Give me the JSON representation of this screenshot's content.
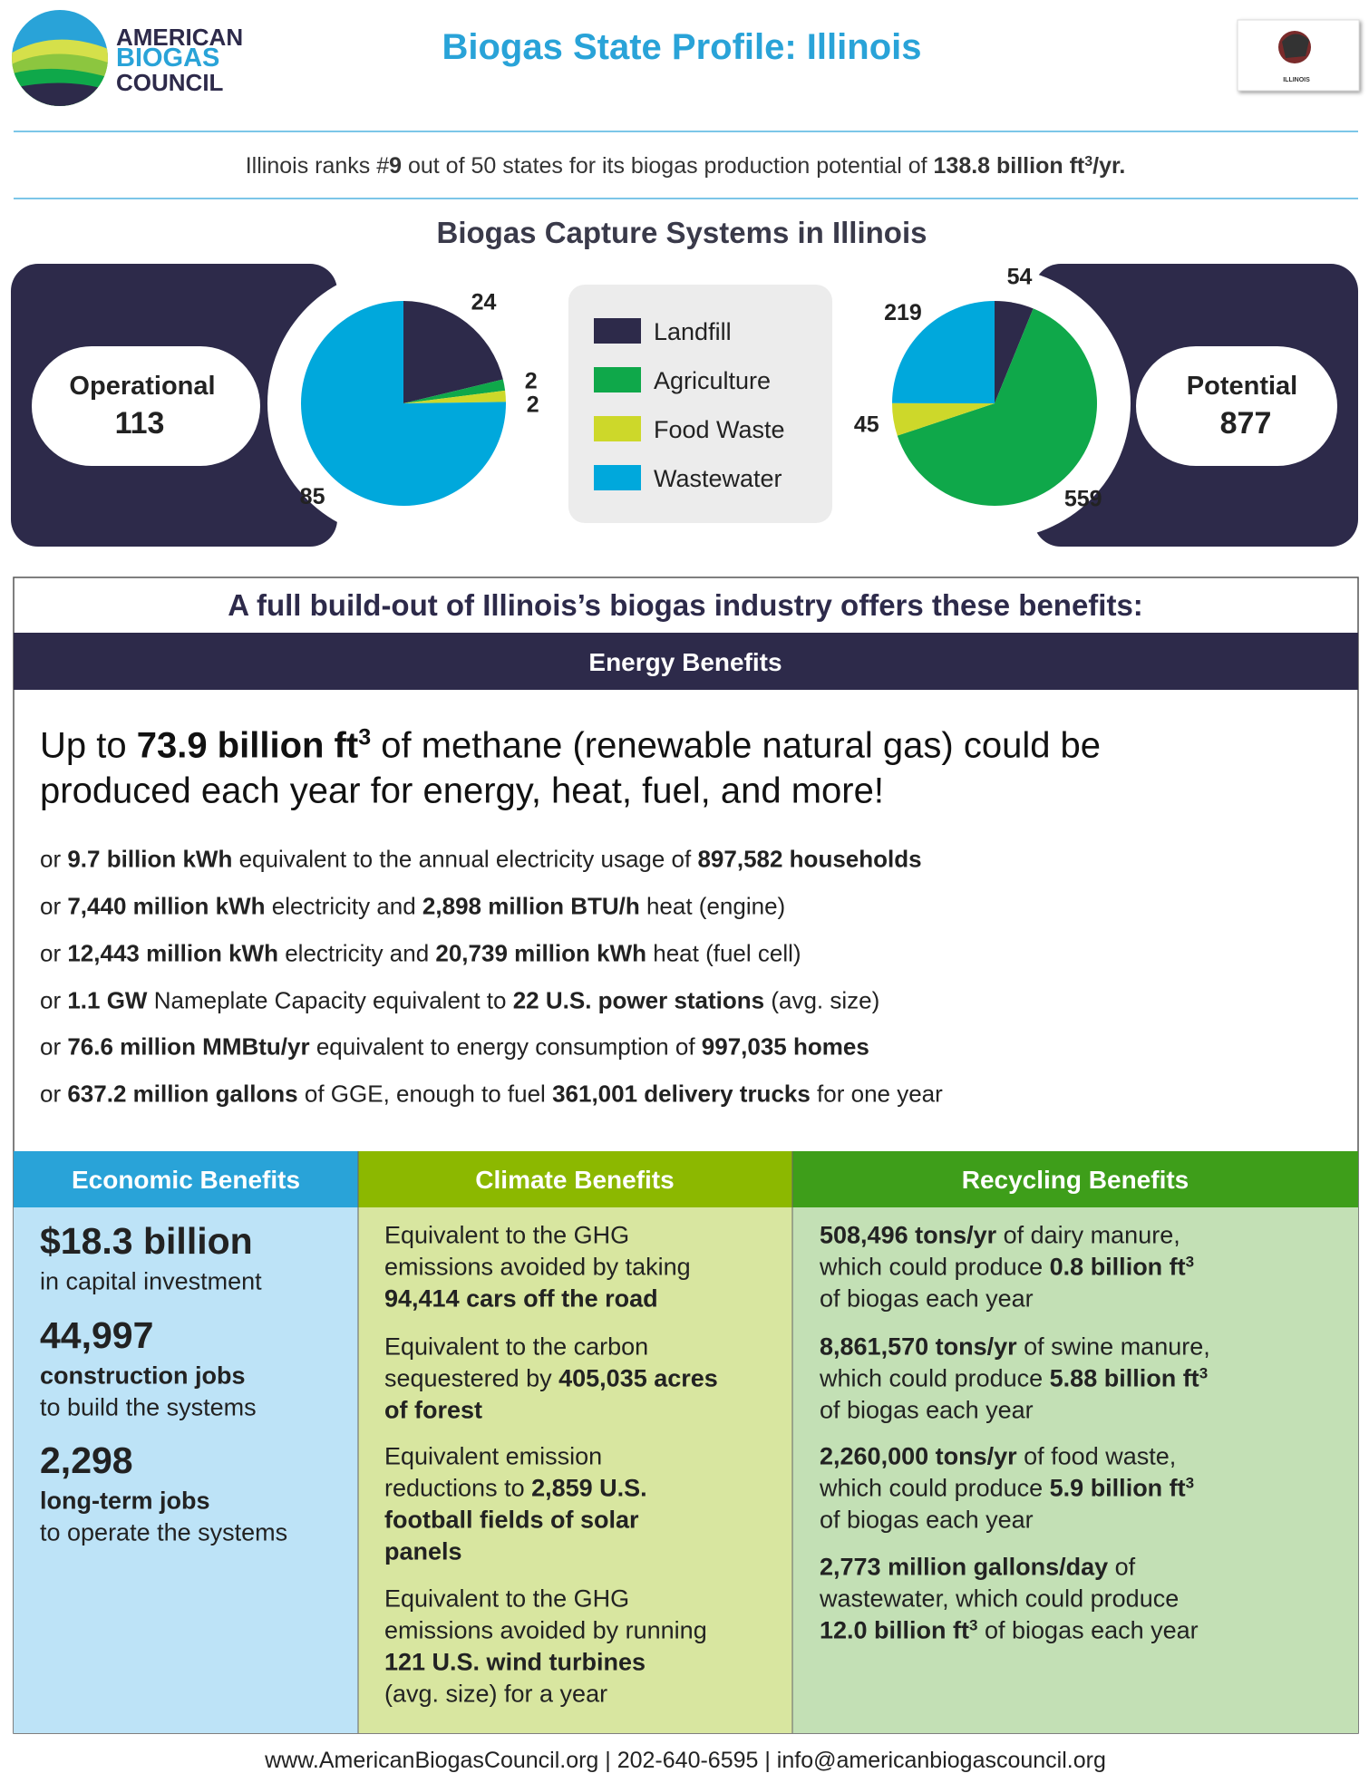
{
  "header": {
    "logo": [
      "AMERICAN",
      "BIOGAS",
      "COUNCIL"
    ],
    "title": "Biogas State Profile: Illinois",
    "flag_label": "ILLINOIS"
  },
  "ranking": [
    "Illinois ranks #",
    {
      "b": "9"
    },
    " out of 50 states for its biogas production potential of ",
    {
      "b": "138.8 billion ft"
    },
    {
      "sup": "3"
    },
    {
      "b": "/yr."
    }
  ],
  "capture": {
    "title": "Biogas Capture Systems in Illinois",
    "operational": {
      "label": "Operational",
      "total": "113"
    },
    "potential": {
      "label": "Potential",
      "total": "877"
    }
  },
  "chart_data": [
    {
      "type": "pie",
      "categories": [
        "Landfill",
        "Agriculture",
        "Food Waste",
        "Wastewater"
      ],
      "colors": [
        "#2d2a4a",
        "#0fa84a",
        "#cdd82a",
        "#00a8dc"
      ],
      "values": [
        24,
        2,
        2,
        85
      ]
    },
    {
      "type": "pie",
      "categories": [
        "Landfill",
        "Agriculture",
        "Food Waste",
        "Wastewater"
      ],
      "colors": [
        "#2d2a4a",
        "#0fa84a",
        "#cdd82a",
        "#00a8dc"
      ],
      "values": [
        54,
        559,
        45,
        219
      ]
    }
  ],
  "benefits": {
    "heading": "A full build-out of Illinois’s biogas industry offers these benefits:",
    "energy": {
      "title": "Energy Benefits",
      "headline": [
        [
          "Up to ",
          {
            "b": "73.9 billion ft"
          },
          {
            "sup": "3"
          },
          " of methane (renewable natural gas) could be"
        ],
        [
          "produced each year for energy, heat, fuel, and more!"
        ]
      ],
      "lines": [
        [
          "or ",
          {
            "b": "9.7 billion kWh"
          },
          " equivalent to the annual electricity usage of ",
          {
            "b": "897,582 households"
          }
        ],
        [
          "or ",
          {
            "b": "7,440 million kWh"
          },
          " electricity and ",
          {
            "b": "2,898 million BTU/h"
          },
          " heat (engine)"
        ],
        [
          "or ",
          {
            "b": "12,443 million kWh"
          },
          " electricity and ",
          {
            "b": "20,739 million kWh"
          },
          " heat (fuel cell)"
        ],
        [
          "or ",
          {
            "b": "1.1 GW"
          },
          " Nameplate Capacity equivalent to ",
          {
            "b": "22 U.S. power stations"
          },
          " (avg. size)"
        ],
        [
          "or ",
          {
            "b": "76.6 million MMBtu/yr"
          },
          " equivalent to energy consumption of ",
          {
            "b": "997,035 homes"
          }
        ],
        [
          "or ",
          {
            "b": "637.2 million gallons"
          },
          " of GGE, enough to fuel ",
          {
            "b": "361,001 delivery trucks"
          },
          " for one year"
        ]
      ]
    },
    "economic": {
      "title": "Economic Benefits",
      "items": [
        {
          "figure": "$18.3 billion",
          "lines": [
            [
              "in capital investment"
            ]
          ]
        },
        {
          "figure": "44,997",
          "lines": [
            [
              {
                "b": "construction jobs"
              }
            ],
            [
              "to build the systems"
            ]
          ]
        },
        {
          "figure": "2,298",
          "lines": [
            [
              {
                "b": "long-term jobs"
              }
            ],
            [
              "to operate the systems"
            ]
          ]
        }
      ]
    },
    "climate": {
      "title": "Climate Benefits",
      "paragraphs": [
        [
          [
            "Equivalent to the GHG"
          ],
          [
            "emissions avoided by taking"
          ],
          [
            {
              "b": "94,414 cars off the road"
            }
          ]
        ],
        [
          [
            "Equivalent to the carbon"
          ],
          [
            "sequestered by ",
            {
              "b": "405,035 acres"
            }
          ],
          [
            {
              "b": "of forest"
            }
          ]
        ],
        [
          [
            "Equivalent emission"
          ],
          [
            "reductions to ",
            {
              "b": "2,859 U.S."
            }
          ],
          [
            {
              "b": "football fields of solar"
            }
          ],
          [
            {
              "b": "panels"
            }
          ]
        ],
        [
          [
            "Equivalent to the GHG"
          ],
          [
            "emissions avoided by running"
          ],
          [
            {
              "b": "121 U.S. wind turbines"
            }
          ],
          [
            "(avg. size) for a year"
          ]
        ]
      ]
    },
    "recycling": {
      "title": "Recycling Benefits",
      "paragraphs": [
        [
          [
            {
              "b": "508,496 tons/yr"
            },
            " of dairy manure,"
          ],
          [
            "which could produce ",
            {
              "b": "0.8 billion ft"
            },
            {
              "sup": "3"
            }
          ],
          [
            "of biogas each year"
          ]
        ],
        [
          [
            {
              "b": "8,861,570 tons/yr"
            },
            " of swine manure,"
          ],
          [
            "which could produce ",
            {
              "b": "5.88 billion ft"
            },
            {
              "sup": "3"
            }
          ],
          [
            "of biogas each year"
          ]
        ],
        [
          [
            {
              "b": "2,260,000 tons/yr"
            },
            " of food waste,"
          ],
          [
            "which could produce ",
            {
              "b": "5.9 billion ft"
            },
            {
              "sup": "3"
            }
          ],
          [
            "of biogas each year"
          ]
        ],
        [
          [
            {
              "b": "2,773 million gallons/day"
            },
            " of"
          ],
          [
            "wastewater, which could produce"
          ],
          [
            {
              "b": "12.0 billion ft"
            },
            {
              "sup": "3"
            },
            " of biogas each year"
          ]
        ]
      ]
    }
  },
  "footer": "www.AmericanBiogasCouncil.org | 202-640-6595 | info@americanbiogascouncil.org"
}
